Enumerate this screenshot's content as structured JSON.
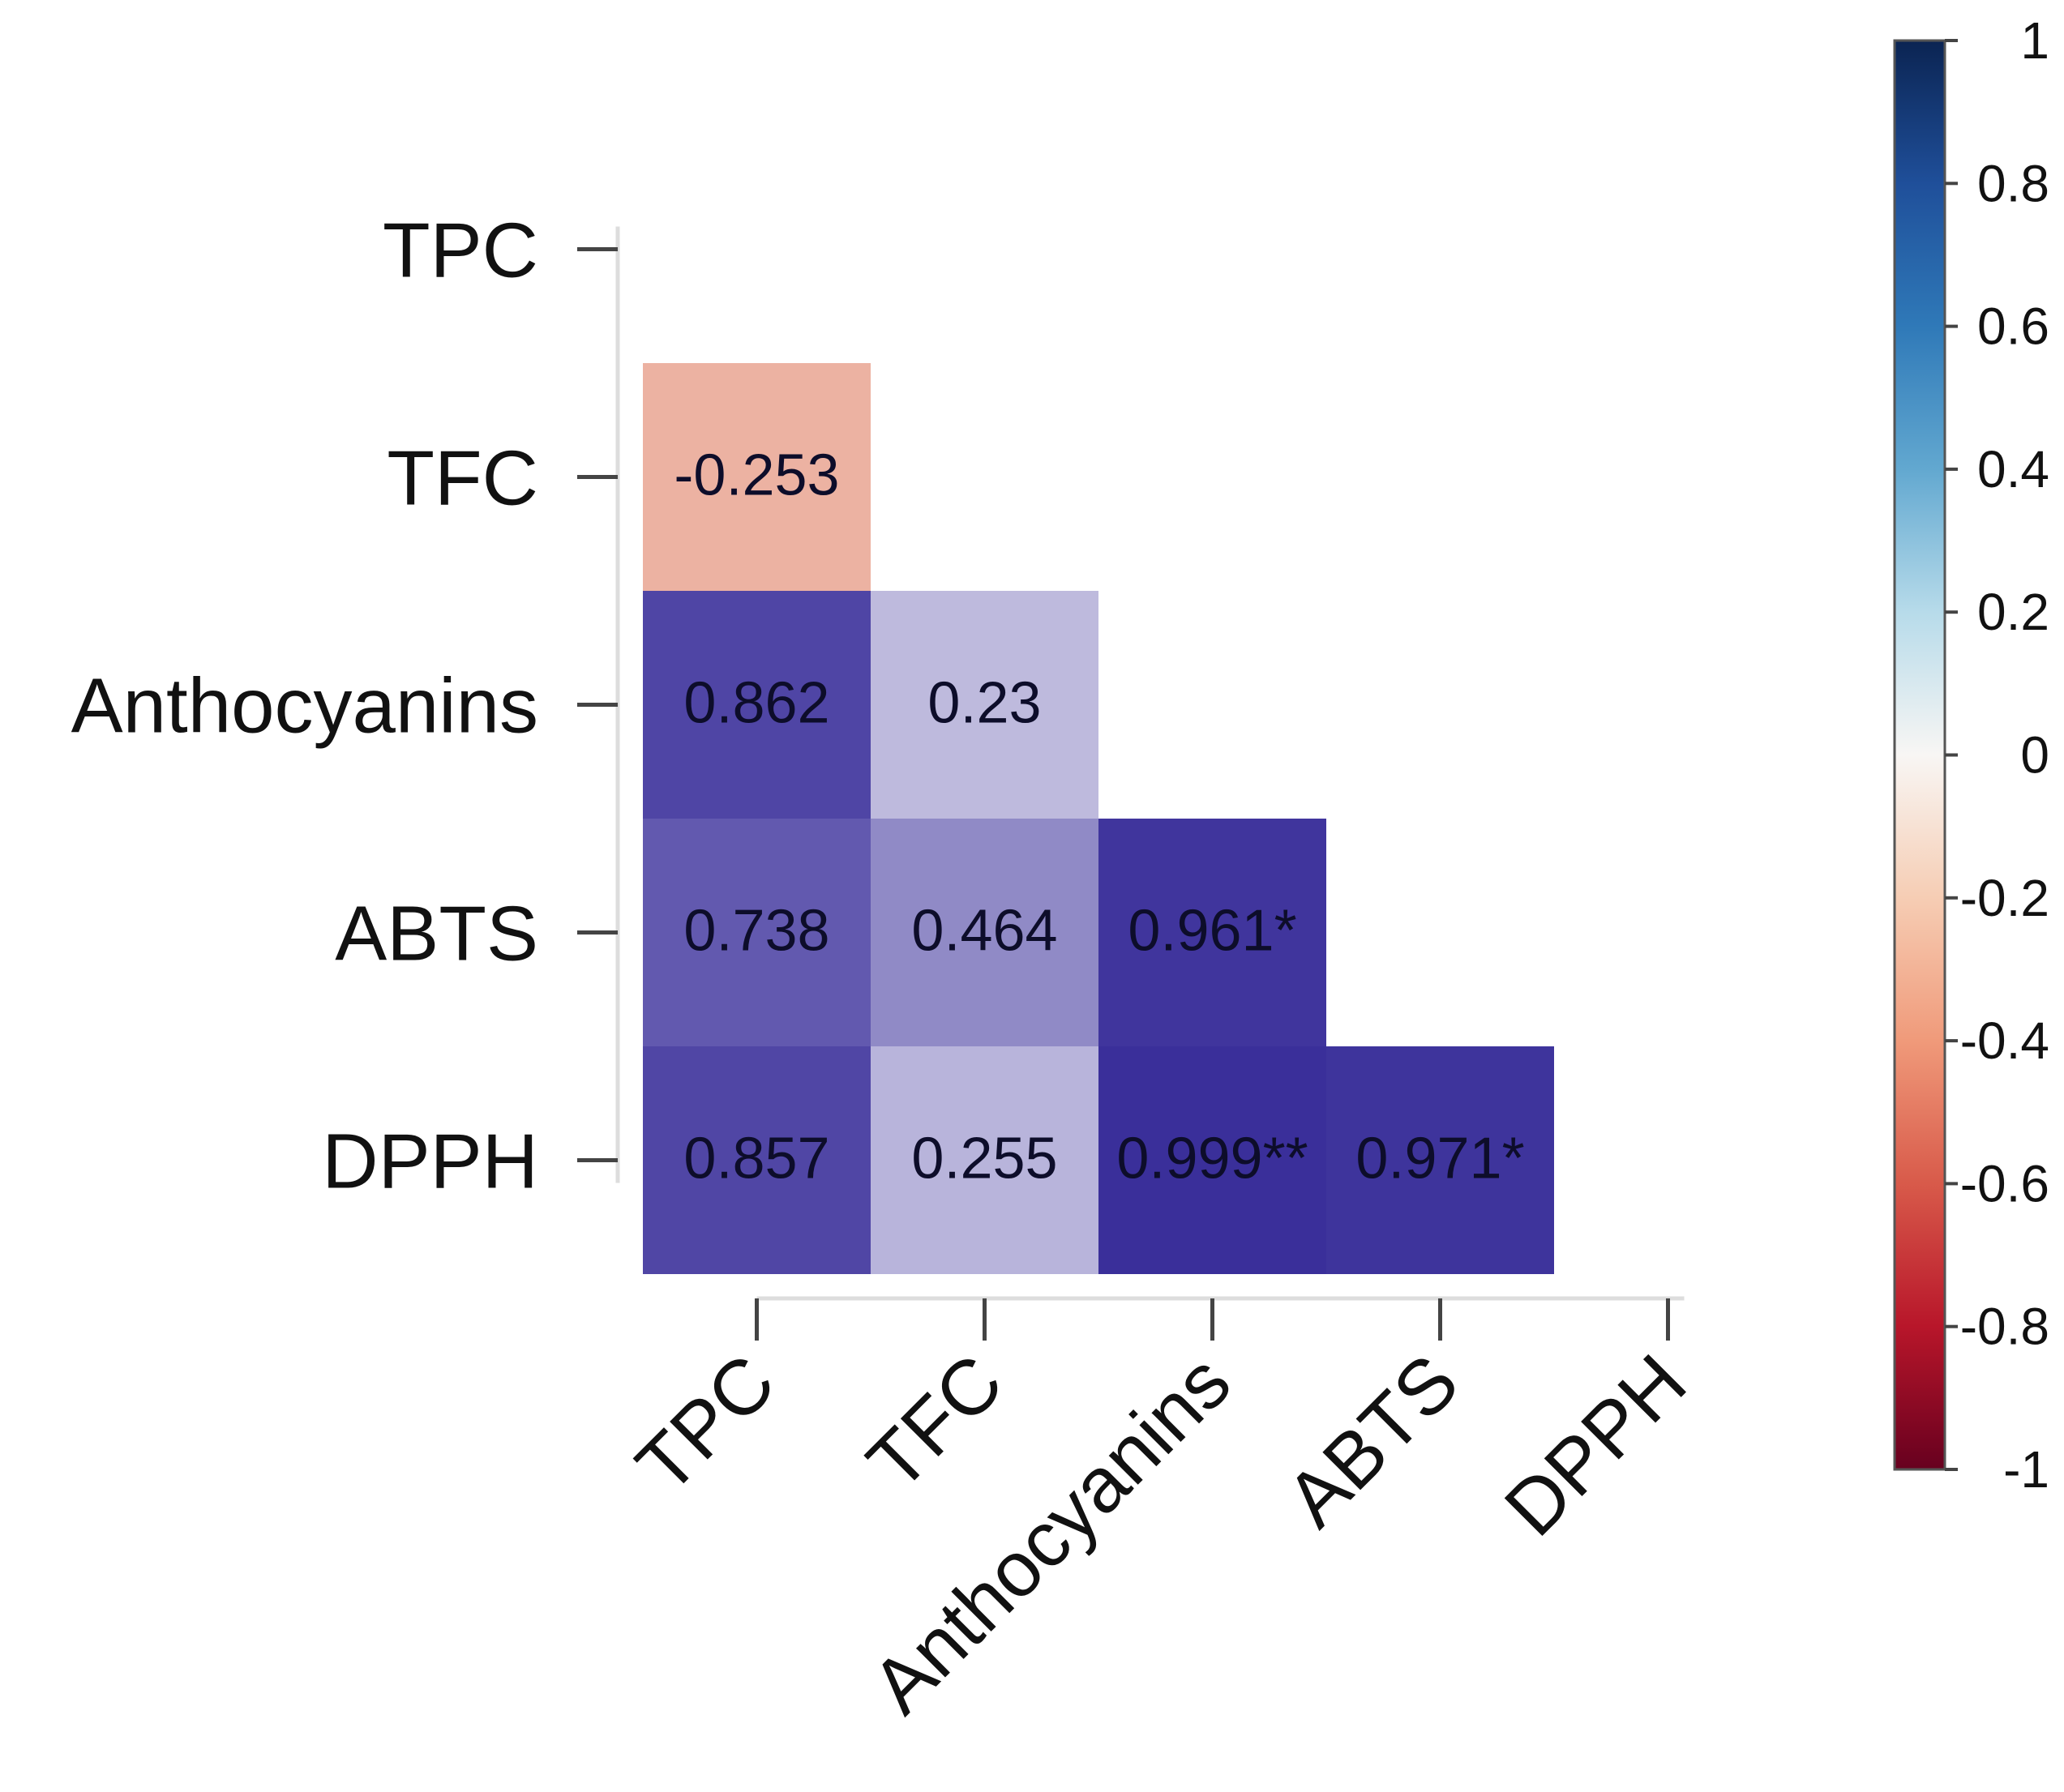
{
  "chart_data": {
    "type": "heatmap",
    "title": "",
    "variables": [
      "TPC",
      "TFC",
      "Anthocyanins",
      "ABTS",
      "DPPH"
    ],
    "layout": "lower-triangle",
    "cells": [
      {
        "row": "TFC",
        "col": "TPC",
        "value": -0.253,
        "label": "-0.253"
      },
      {
        "row": "Anthocyanins",
        "col": "TPC",
        "value": 0.862,
        "label": "0.862"
      },
      {
        "row": "Anthocyanins",
        "col": "TFC",
        "value": 0.23,
        "label": "0.23"
      },
      {
        "row": "ABTS",
        "col": "TPC",
        "value": 0.738,
        "label": "0.738"
      },
      {
        "row": "ABTS",
        "col": "TFC",
        "value": 0.464,
        "label": "0.464"
      },
      {
        "row": "ABTS",
        "col": "Anthocyanins",
        "value": 0.961,
        "label": "0.961*"
      },
      {
        "row": "DPPH",
        "col": "TPC",
        "value": 0.857,
        "label": "0.857"
      },
      {
        "row": "DPPH",
        "col": "TFC",
        "value": 0.255,
        "label": "0.255"
      },
      {
        "row": "DPPH",
        "col": "Anthocyanins",
        "value": 0.999,
        "label": "0.999**"
      },
      {
        "row": "DPPH",
        "col": "ABTS",
        "value": 0.971,
        "label": "0.971*"
      }
    ],
    "colorbar": {
      "range": [
        -1,
        1
      ],
      "ticks": [
        1,
        0.8,
        0.6,
        0.4,
        0.2,
        0,
        -0.2,
        -0.4,
        -0.6,
        -0.8,
        -1
      ],
      "tick_labels": [
        "1",
        "0.8",
        "0.6",
        "0.4",
        "0.2",
        "0",
        "-0.2",
        "-0.4",
        "-0.6",
        "-0.8",
        "-1"
      ],
      "colormap": "RdBu"
    },
    "colors": {
      "positive": "#3a2f9a",
      "negative": "#e8a08c",
      "neutral": "#ffffff"
    }
  }
}
